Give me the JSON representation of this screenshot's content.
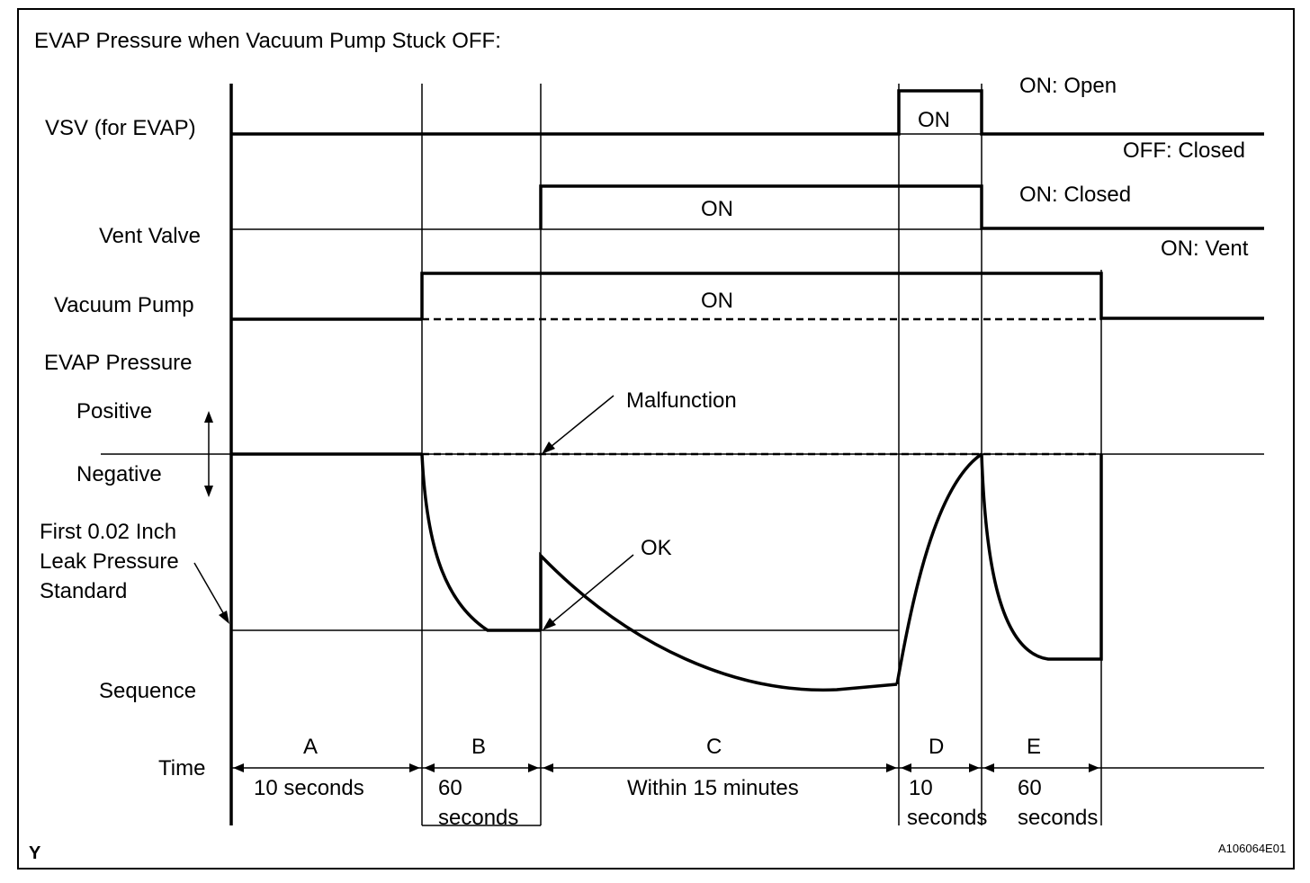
{
  "title": "EVAP Pressure when Vacuum Pump Stuck OFF:",
  "rows": {
    "vsv": "VSV (for EVAP)",
    "vent_valve": "Vent Valve",
    "vacuum_pump": "Vacuum Pump",
    "evap_pressure": "EVAP Pressure",
    "positive": "Positive",
    "negative": "Negative",
    "leak_line1": "First 0.02 Inch",
    "leak_line2": "Leak Pressure",
    "leak_line3": "Standard",
    "sequence": "Sequence",
    "time": "Time"
  },
  "signals": {
    "vsv_on": "ON",
    "vsv_on_state": "ON: Open",
    "vsv_off_state": "OFF: Closed",
    "vent_on": "ON",
    "vent_on_state": "ON: Closed",
    "vent_off_state": "ON: Vent",
    "pump_on": "ON"
  },
  "annotations": {
    "malfunction": "Malfunction",
    "ok": "OK"
  },
  "sequence": [
    {
      "letter": "A",
      "time1": "10 seconds",
      "time2": ""
    },
    {
      "letter": "B",
      "time1": "60",
      "time2": "seconds"
    },
    {
      "letter": "C",
      "time1": "Within 15 minutes",
      "time2": ""
    },
    {
      "letter": "D",
      "time1": "10",
      "time2": "seconds"
    },
    {
      "letter": "E",
      "time1": "60",
      "time2": "seconds"
    }
  ],
  "footer": {
    "left_mark": "Y",
    "figure_code": "A106064E01"
  }
}
